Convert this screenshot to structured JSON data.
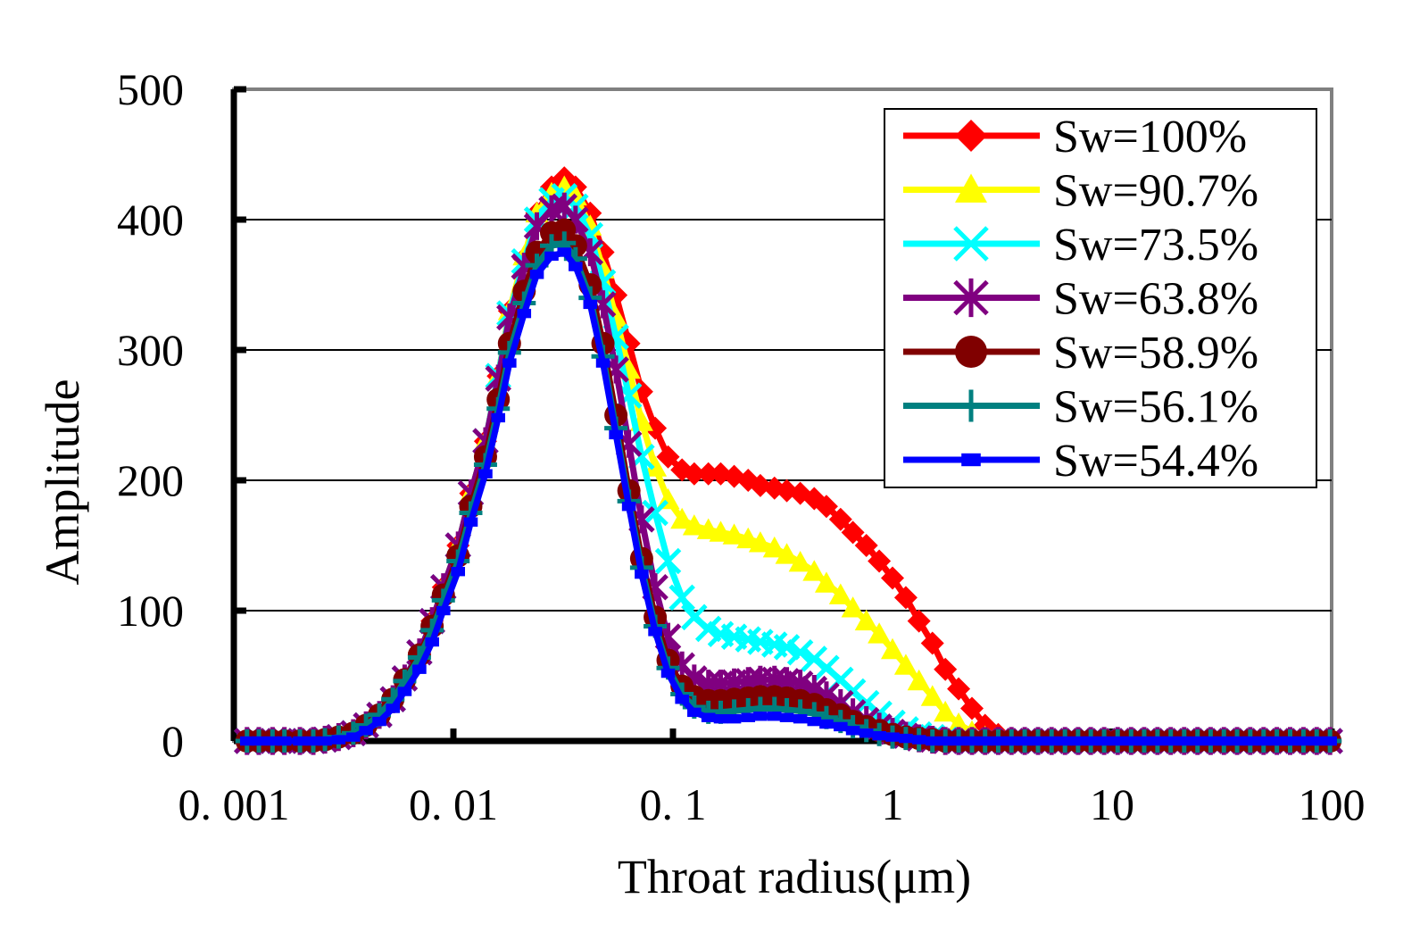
{
  "chart_data": {
    "type": "line",
    "xscale": "log",
    "xlabel": "Throat radius(μm)",
    "ylabel": "Amplitude",
    "xlim": [
      0.001,
      100
    ],
    "ylim": [
      0,
      500
    ],
    "xtick_labels": [
      "0. 001",
      "0. 01",
      "0. 1",
      "1",
      "10",
      "100"
    ],
    "ytick_labels": [
      "0",
      "100",
      "200",
      "300",
      "400",
      "500"
    ],
    "grid": "horizontal",
    "legend_position": "top-right",
    "x_points": [
      0.001148,
      0.0013,
      0.0015,
      0.0017,
      0.002,
      0.0023,
      0.0026,
      0.003,
      0.0035,
      0.004,
      0.0046,
      0.0053,
      0.006,
      0.007,
      0.008,
      0.009,
      0.0105,
      0.012,
      0.014,
      0.016,
      0.018,
      0.021,
      0.024,
      0.028,
      0.032,
      0.036,
      0.042,
      0.048,
      0.055,
      0.063,
      0.072,
      0.083,
      0.095,
      0.11,
      0.125,
      0.145,
      0.165,
      0.19,
      0.22,
      0.25,
      0.29,
      0.33,
      0.38,
      0.44,
      0.5,
      0.58,
      0.66,
      0.76,
      0.87,
      1.0,
      1.15,
      1.32,
      1.52,
      1.74,
      2.0,
      2.3,
      2.64,
      3.03,
      3.48,
      4.0,
      4.6,
      5.3,
      6.1,
      7.0,
      8.0,
      9.2,
      10.6,
      12.2,
      14.0,
      16.1,
      18.5,
      21.3,
      24.5,
      28.1,
      32.3,
      37.1,
      42.6,
      49.0,
      56.3,
      64.7,
      74.4,
      85.5,
      98.3
    ],
    "series": [
      {
        "name": "Sw=100%",
        "color": "#ff0000",
        "marker": "diamond",
        "values": [
          0,
          0,
          0,
          0,
          0,
          0,
          1,
          3,
          6,
          12,
          20,
          32,
          48,
          68,
          92,
          118,
          150,
          190,
          230,
          280,
          330,
          370,
          405,
          425,
          432,
          425,
          405,
          375,
          342,
          305,
          268,
          240,
          218,
          208,
          205,
          205,
          205,
          203,
          200,
          196,
          194,
          192,
          190,
          186,
          180,
          170,
          160,
          150,
          138,
          125,
          110,
          92,
          75,
          55,
          40,
          25,
          12,
          5,
          2,
          0,
          0,
          0,
          0,
          0,
          0,
          0,
          0,
          0,
          0,
          0,
          0,
          0,
          0,
          0,
          0,
          0,
          0,
          0,
          0,
          0,
          0,
          0,
          0
        ]
      },
      {
        "name": "Sw=90.7%",
        "color": "#ffff00",
        "marker": "triangle",
        "values": [
          0,
          0,
          0,
          0,
          0,
          0,
          1,
          3,
          6,
          12,
          20,
          32,
          48,
          68,
          92,
          118,
          150,
          190,
          230,
          280,
          330,
          372,
          405,
          420,
          425,
          418,
          395,
          362,
          325,
          285,
          245,
          210,
          185,
          170,
          165,
          162,
          160,
          158,
          155,
          152,
          148,
          143,
          137,
          130,
          121,
          112,
          102,
          92,
          82,
          70,
          58,
          46,
          34,
          22,
          13,
          7,
          3,
          1,
          0,
          0,
          0,
          0,
          0,
          0,
          0,
          0,
          0,
          0,
          0,
          0,
          0,
          0,
          0,
          0,
          0,
          0,
          0,
          0,
          0,
          0,
          0,
          0,
          0
        ]
      },
      {
        "name": "Sw=73.5%",
        "color": "#00ffff",
        "marker": "x",
        "values": [
          0,
          0,
          0,
          0,
          0,
          0,
          1,
          3,
          6,
          12,
          20,
          32,
          48,
          68,
          92,
          118,
          150,
          190,
          230,
          280,
          328,
          368,
          400,
          415,
          418,
          410,
          388,
          352,
          310,
          265,
          218,
          175,
          138,
          110,
          95,
          86,
          82,
          80,
          78,
          76,
          74,
          72,
          68,
          63,
          56,
          47,
          38,
          29,
          21,
          14,
          9,
          5,
          3,
          1,
          0,
          0,
          0,
          0,
          0,
          0,
          0,
          0,
          0,
          0,
          0,
          0,
          0,
          0,
          0,
          0,
          0,
          0,
          0,
          0,
          0,
          0,
          0,
          0,
          0,
          0,
          0,
          0,
          0
        ]
      },
      {
        "name": "Sw=63.8%",
        "color": "#800080",
        "marker": "star",
        "values": [
          0,
          0,
          0,
          0,
          0,
          0,
          1,
          3,
          6,
          12,
          20,
          32,
          48,
          68,
          92,
          118,
          150,
          190,
          230,
          278,
          325,
          364,
          395,
          408,
          410,
          400,
          375,
          335,
          285,
          228,
          170,
          118,
          80,
          58,
          48,
          44,
          44,
          45,
          46,
          47,
          47,
          46,
          44,
          40,
          35,
          29,
          22,
          16,
          11,
          7,
          4,
          2,
          1,
          0,
          0,
          0,
          0,
          0,
          0,
          0,
          0,
          0,
          0,
          0,
          0,
          0,
          0,
          0,
          0,
          0,
          0,
          0,
          0,
          0,
          0,
          0,
          0,
          0,
          0,
          0,
          0,
          0,
          0
        ]
      },
      {
        "name": "Sw=58.9%",
        "color": "#800000",
        "marker": "circle",
        "values": [
          0,
          0,
          0,
          0,
          0,
          0,
          1,
          3,
          6,
          12,
          20,
          32,
          47,
          66,
          88,
          112,
          142,
          180,
          218,
          262,
          305,
          345,
          375,
          390,
          392,
          380,
          350,
          305,
          250,
          192,
          140,
          95,
          62,
          42,
          34,
          31,
          31,
          32,
          33,
          34,
          34,
          33,
          31,
          28,
          24,
          20,
          15,
          11,
          8,
          5,
          3,
          2,
          1,
          0,
          0,
          0,
          0,
          0,
          0,
          0,
          0,
          0,
          0,
          0,
          0,
          0,
          0,
          0,
          0,
          0,
          0,
          0,
          0,
          0,
          0,
          0,
          0,
          0,
          0,
          0,
          0,
          0,
          0
        ]
      },
      {
        "name": "Sw=56.1%",
        "color": "#008080",
        "marker": "plus",
        "values": [
          0,
          0,
          0,
          0,
          0,
          0,
          1,
          3,
          6,
          12,
          20,
          32,
          46,
          64,
          85,
          108,
          138,
          175,
          212,
          255,
          298,
          336,
          365,
          380,
          382,
          370,
          340,
          295,
          240,
          184,
          133,
          88,
          56,
          36,
          26,
          22,
          22,
          23,
          24,
          25,
          25,
          24,
          23,
          21,
          18,
          15,
          11,
          8,
          5,
          3,
          2,
          1,
          0,
          0,
          0,
          0,
          0,
          0,
          0,
          0,
          0,
          0,
          0,
          0,
          0,
          0,
          0,
          0,
          0,
          0,
          0,
          0,
          0,
          0,
          0,
          0,
          0,
          0,
          0,
          0,
          0,
          0,
          0
        ]
      },
      {
        "name": "Sw=54.4%",
        "color": "#0000ff",
        "marker": "square",
        "values": [
          0,
          0,
          0,
          0,
          0,
          0,
          0,
          1,
          3,
          8,
          15,
          25,
          38,
          55,
          76,
          100,
          130,
          168,
          205,
          248,
          290,
          328,
          358,
          372,
          375,
          364,
          335,
          290,
          235,
          180,
          128,
          84,
          52,
          32,
          22,
          18,
          17,
          17,
          18,
          19,
          19,
          18,
          17,
          15,
          13,
          11,
          8,
          6,
          4,
          3,
          2,
          1,
          0,
          0,
          0,
          0,
          0,
          0,
          0,
          0,
          0,
          0,
          0,
          0,
          0,
          0,
          0,
          0,
          0,
          0,
          0,
          0,
          0,
          0,
          0,
          0,
          0,
          0,
          0,
          0,
          0,
          0,
          0
        ]
      }
    ]
  }
}
